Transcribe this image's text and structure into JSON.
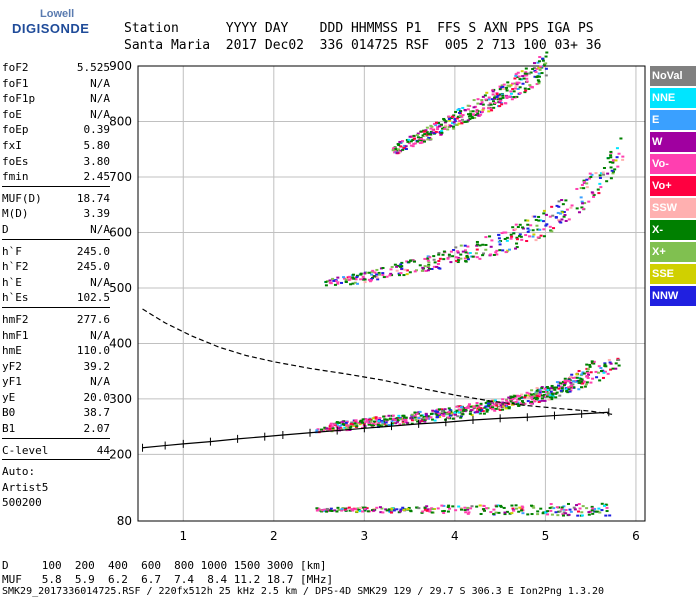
{
  "logo": {
    "top": "Lowell",
    "main": "DIGISONDE"
  },
  "header": {
    "row1": "Station      YYYY DAY    DDD HHMMSS P1  FFS S AXN PPS IGA PS",
    "row2": "Santa Maria  2017 Dec02  336 014725 RSF  005 2 713 100 03+ 36"
  },
  "params": [
    [
      [
        "foF2",
        "5.525"
      ],
      [
        "foF1",
        "N/A"
      ],
      [
        "foF1p",
        "N/A"
      ],
      [
        "foE",
        "N/A"
      ],
      [
        "foEp",
        "0.39"
      ],
      [
        "fxI",
        "5.80"
      ],
      [
        "foEs",
        "3.80"
      ],
      [
        "fmin",
        "2.45"
      ]
    ],
    [
      [
        "MUF(D)",
        "18.74"
      ],
      [
        "M(D)",
        "3.39"
      ],
      [
        "D",
        "N/A"
      ]
    ],
    [
      [
        "h`F",
        "245.0"
      ],
      [
        "h`F2",
        "245.0"
      ],
      [
        "h`E",
        "N/A"
      ],
      [
        "h`Es",
        "102.5"
      ]
    ],
    [
      [
        "hmF2",
        "277.6"
      ],
      [
        "hmF1",
        "N/A"
      ],
      [
        "hmE",
        "110.0"
      ],
      [
        "yF2",
        "39.2"
      ],
      [
        "yF1",
        "N/A"
      ],
      [
        "yE",
        "20.0"
      ],
      [
        "B0",
        "38.7"
      ],
      [
        "B1",
        "2.07"
      ]
    ],
    [
      [
        "C-level",
        "44"
      ]
    ]
  ],
  "auto_lines": [
    "Auto:",
    "Artist5",
    "500200"
  ],
  "legend": [
    {
      "label": "NoVal",
      "color": "#808080"
    },
    {
      "label": "NNE",
      "color": "#00e5ff"
    },
    {
      "label": "E",
      "color": "#3aa0ff"
    },
    {
      "label": "W",
      "color": "#a000a0"
    },
    {
      "label": "Vo-",
      "color": "#ff3fb0"
    },
    {
      "label": "Vo+",
      "color": "#ff0040"
    },
    {
      "label": "SSW",
      "color": "#ffb0b0"
    },
    {
      "label": "X-",
      "color": "#008000"
    },
    {
      "label": "X+",
      "color": "#80c050"
    },
    {
      "label": "SSE",
      "color": "#d0d000"
    },
    {
      "label": "NNW",
      "color": "#2020e0"
    }
  ],
  "bottom_table": {
    "row_d": "D     100  200  400  600  800 1000 1500 3000 [km]",
    "row_muf": "MUF   5.8  5.9  6.2  6.7  7.4  8.4 11.2 18.7 [MHz]"
  },
  "footer": "SMK29_2017336014725.RSF / 220fx512h 25 kHz 2.5 km / DPS-4D SMK29 129 / 29.7 S 306.3 E Ion2Png 1.3.20",
  "chart_data": {
    "type": "scatter",
    "xlim": [
      0.5,
      6.1
    ],
    "ylim": [
      80,
      900
    ],
    "x_ticks": [
      1,
      2,
      3,
      4,
      5,
      6
    ],
    "y_ticks": [
      80,
      200,
      300,
      400,
      500,
      600,
      700,
      800,
      900
    ],
    "grid": true,
    "legend_position": "right",
    "profile_curve": {
      "name": "",
      "points": [
        [
          0.55,
          212
        ],
        [
          0.8,
          216
        ],
        [
          1.0,
          219
        ],
        [
          1.3,
          223
        ],
        [
          1.6,
          228
        ],
        [
          1.9,
          232
        ],
        [
          2.1,
          235
        ],
        [
          2.4,
          239
        ],
        [
          2.7,
          243
        ],
        [
          3.0,
          247
        ],
        [
          3.3,
          251
        ],
        [
          3.6,
          255
        ],
        [
          3.9,
          258
        ],
        [
          4.2,
          262
        ],
        [
          4.5,
          265
        ],
        [
          4.8,
          267
        ],
        [
          5.1,
          270
        ],
        [
          5.4,
          273
        ],
        [
          5.7,
          276
        ]
      ]
    },
    "mcurve": {
      "points": [
        [
          0.55,
          462
        ],
        [
          0.8,
          437
        ],
        [
          1.1,
          413
        ],
        [
          1.4,
          393
        ],
        [
          1.7,
          378
        ],
        [
          2.0,
          367
        ],
        [
          2.4,
          355
        ],
        [
          2.8,
          345
        ],
        [
          3.2,
          334
        ],
        [
          3.6,
          320
        ],
        [
          4.0,
          307
        ],
        [
          4.4,
          296
        ],
        [
          4.8,
          288
        ],
        [
          5.2,
          282
        ],
        [
          5.5,
          278
        ],
        [
          5.75,
          272
        ]
      ]
    },
    "traces": [
      {
        "mode": "F2-1hop",
        "x": [
          2.45,
          2.8,
          3.2,
          3.6,
          4.0,
          4.4,
          4.8,
          5.1,
          5.3,
          5.45,
          5.53
        ],
        "y": [
          245,
          250,
          258,
          266,
          275,
          288,
          305,
          320,
          335,
          352,
          362
        ]
      },
      {
        "mode": "F2-1hop-X",
        "x": [
          2.6,
          3.0,
          3.5,
          4.0,
          4.5,
          5.0,
          5.3,
          5.6,
          5.8
        ],
        "y": [
          255,
          262,
          270,
          280,
          292,
          310,
          328,
          350,
          372
        ]
      },
      {
        "mode": "F2-2hop",
        "x": [
          2.55,
          3.0,
          3.4,
          3.8,
          4.2,
          4.6,
          4.9,
          5.2,
          5.4,
          5.6,
          5.75,
          5.85
        ],
        "y": [
          510,
          520,
          535,
          550,
          568,
          590,
          612,
          640,
          668,
          700,
          730,
          760
        ]
      },
      {
        "mode": "F2-3hop",
        "x": [
          3.3,
          3.7,
          4.1,
          4.5,
          4.8,
          5.0
        ],
        "y": [
          750,
          780,
          815,
          850,
          880,
          905
        ]
      },
      {
        "mode": "Es",
        "x": [
          2.45,
          3.0,
          3.5,
          3.8,
          4.2,
          4.6,
          5.0,
          5.5,
          5.7
        ],
        "y": [
          102,
          102,
          102,
          103,
          102,
          102,
          103,
          102,
          101
        ]
      }
    ]
  }
}
